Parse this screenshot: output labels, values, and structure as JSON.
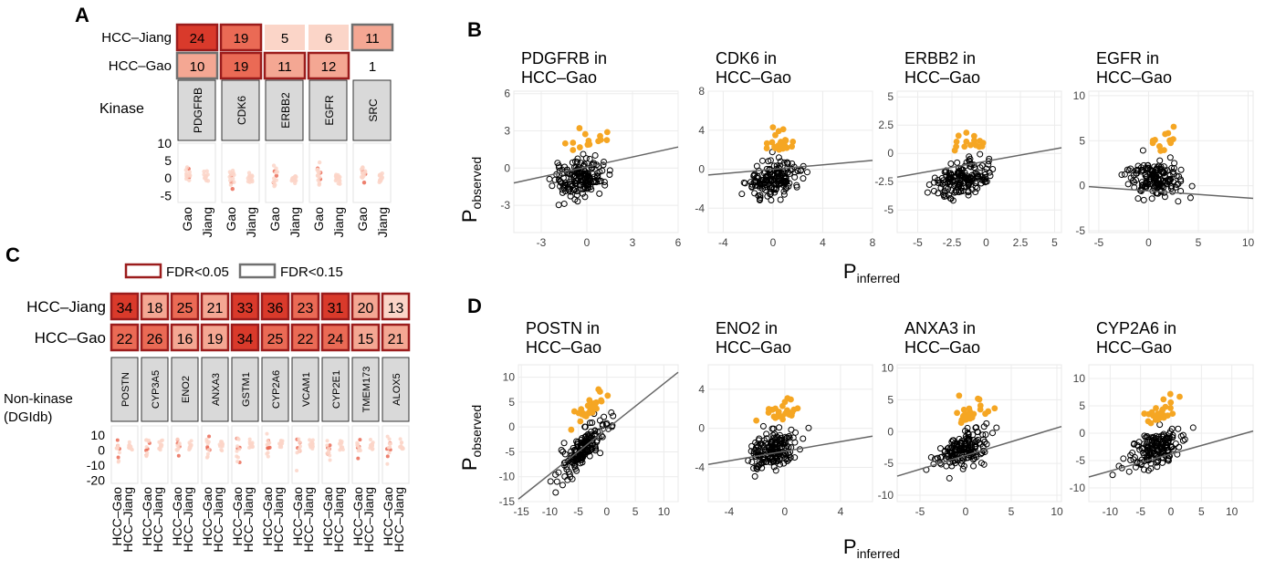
{
  "panel_letters": {
    "a": "A",
    "b": "B",
    "c": "C",
    "d": "D"
  },
  "legend": {
    "fdr005": "FDR<0.05",
    "fdr015": "FDR<0.15"
  },
  "axis_titles": {
    "b_y_main": "P",
    "b_y_sub": "observed",
    "b_x_main": "P",
    "b_x_sub": "inferred",
    "d_y_main": "P",
    "d_y_sub": "observed",
    "d_x_main": "P",
    "d_x_sub": "inferred"
  },
  "colors": {
    "dark_red": "#d93a2b",
    "mid_red": "#ea6a55",
    "light_red": "#f4a793",
    "pale_red": "#fbd5c8",
    "frame_red": "#9b1c1c",
    "frame_gray": "#707070",
    "strip_gray": "#d9d9d9",
    "orange": "#f5a623",
    "line_gray": "#666666"
  },
  "chart_data": [
    {
      "id": "A",
      "type": "heatmap",
      "rows": [
        "HCC–Jiang",
        "HCC–Gao"
      ],
      "columns": [
        "PDGFRB",
        "CDK6",
        "ERBB2",
        "EGFR",
        "SRC"
      ],
      "values": [
        [
          24,
          19,
          5,
          6,
          11
        ],
        [
          10,
          19,
          11,
          12,
          1
        ]
      ],
      "significance": [
        [
          "fdr005",
          "fdr005",
          "none",
          "none",
          "fdr015"
        ],
        [
          "fdr015",
          "fdr005",
          "fdr005",
          "fdr005",
          "none"
        ]
      ],
      "strip_label": "Kinase",
      "mini_plot": {
        "ylim": [
          -7,
          10
        ],
        "yticks": [
          10,
          5,
          0,
          -5
        ],
        "xlabels": [
          "Gao",
          "Jiang"
        ]
      }
    },
    {
      "id": "C",
      "type": "heatmap",
      "rows": [
        "HCC–Jiang",
        "HCC–Gao"
      ],
      "columns": [
        "POSTN",
        "CYP3A5",
        "ENO2",
        "ANXA3",
        "GSTM1",
        "CYP2A6",
        "VCAM1",
        "CYP2E1",
        "TMEM173",
        "ALOX5"
      ],
      "values": [
        [
          34,
          18,
          25,
          21,
          33,
          36,
          23,
          31,
          20,
          13
        ],
        [
          22,
          26,
          16,
          19,
          34,
          25,
          22,
          24,
          15,
          21
        ]
      ],
      "significance": [
        [
          "fdr005",
          "fdr005",
          "fdr005",
          "fdr005",
          "fdr005",
          "fdr005",
          "fdr005",
          "fdr005",
          "fdr005",
          "fdr005"
        ],
        [
          "fdr005",
          "fdr005",
          "fdr005",
          "fdr005",
          "fdr005",
          "fdr005",
          "fdr005",
          "fdr005",
          "fdr005",
          "fdr005"
        ]
      ],
      "strip_label_lines": [
        "Non-kinase",
        "(DGIdb)"
      ],
      "mini_plot": {
        "ylim": [
          -22,
          16
        ],
        "yticks": [
          10,
          0,
          -10,
          -20
        ],
        "xlabels": [
          "HCC–Gao",
          "HCC–Jiang"
        ]
      }
    },
    {
      "id": "B",
      "type": "scatter",
      "subplots": [
        {
          "title": [
            "PDGFRB in",
            "HCC–Gao"
          ],
          "xlim": [
            -4.8,
            6
          ],
          "ylim": [
            -5.2,
            6.2
          ],
          "xticks": [
            -3,
            0,
            3,
            6
          ],
          "yticks": [
            6,
            3,
            0,
            -3
          ],
          "line": [
            -1.2,
            1.7
          ],
          "n_black": 170,
          "n_orange": 14,
          "seed": 11
        },
        {
          "title": [
            "CDK6 in",
            "HCC–Gao"
          ],
          "xlim": [
            -5.2,
            8
          ],
          "ylim": [
            -6.5,
            8
          ],
          "xticks": [
            -4,
            0,
            4,
            8
          ],
          "yticks": [
            8,
            4,
            0,
            -4
          ],
          "line": [
            -0.6,
            0.9
          ],
          "n_black": 170,
          "n_orange": 22,
          "seed": 23
        },
        {
          "title": [
            "ERBB2 in",
            "HCC–Gao"
          ],
          "xlim": [
            -6.5,
            5.5
          ],
          "ylim": [
            -7,
            5.5
          ],
          "xticks": [
            -5.0,
            -2.5,
            0.0,
            2.5,
            5.0
          ],
          "yticks": [
            5.0,
            2.5,
            0.0,
            -2.5,
            -5.0
          ],
          "line": [
            -2.1,
            0.5
          ],
          "n_black": 170,
          "n_orange": 16,
          "seed": 37
        },
        {
          "title": [
            "EGFR in",
            "HCC–Gao"
          ],
          "xlim": [
            -6,
            10.5
          ],
          "ylim": [
            -5.2,
            10.5
          ],
          "xticks": [
            -5,
            0,
            5,
            10
          ],
          "yticks": [
            10,
            5,
            0,
            -5
          ],
          "line": [
            -0.1,
            -1.4
          ],
          "n_black": 170,
          "n_orange": 14,
          "seed": 51
        }
      ]
    },
    {
      "id": "D",
      "type": "scatter",
      "subplots": [
        {
          "title": [
            "POSTN in",
            "HCC–Gao"
          ],
          "xlim": [
            -15.5,
            12.5
          ],
          "ylim": [
            -15,
            12.5
          ],
          "xticks": [
            -15,
            -10,
            -5,
            0,
            5,
            10
          ],
          "yticks": [
            10,
            5,
            0,
            -5,
            -10,
            -15
          ],
          "line": [
            -14.5,
            11
          ],
          "n_black": 170,
          "n_orange": 32,
          "seed": 61
        },
        {
          "title": [
            "ENO2 in",
            "HCC–Gao"
          ],
          "xlim": [
            -5.5,
            6.3
          ],
          "ylim": [
            -7.5,
            6.5
          ],
          "xticks": [
            -4,
            0,
            4
          ],
          "yticks": [
            4,
            0,
            -4
          ],
          "line": [
            -3.7,
            -0.8
          ],
          "n_black": 170,
          "n_orange": 26,
          "seed": 73
        },
        {
          "title": [
            "ANXA3 in",
            "HCC–Gao"
          ],
          "xlim": [
            -7.5,
            10.5
          ],
          "ylim": [
            -11,
            10.5
          ],
          "xticks": [
            -5,
            0,
            5,
            10
          ],
          "yticks": [
            10,
            5,
            0,
            -5,
            -10
          ],
          "line": [
            -7,
            0.8
          ],
          "n_black": 170,
          "n_orange": 28,
          "seed": 89
        },
        {
          "title": [
            "CYP2A6 in",
            "HCC–Gao"
          ],
          "xlim": [
            -13.5,
            13.5
          ],
          "ylim": [
            -12.5,
            12.5
          ],
          "xticks": [
            -10,
            -5,
            0,
            5,
            10
          ],
          "yticks": [
            10,
            5,
            0,
            -5,
            -10
          ],
          "line": [
            -8,
            0.4
          ],
          "n_black": 170,
          "n_orange": 30,
          "seed": 97
        }
      ]
    }
  ]
}
